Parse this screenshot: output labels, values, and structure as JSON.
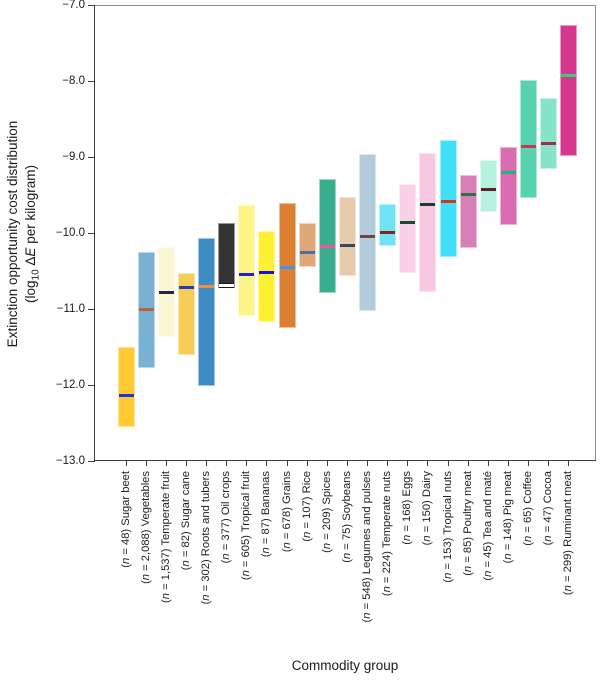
{
  "chart_data": {
    "type": "bar",
    "variant": "floating range bars (distribution min–max) with median tick per category",
    "title": "",
    "xlabel": "Commodity group",
    "ylabel_line1": "Extinction opportunity cost distribution",
    "ylabel_line2_parts": {
      "pre": "(log",
      "sub": "10",
      "mid": " Δ",
      "italic": "E",
      "post": " per kilogram)"
    },
    "ylabel_plain": "Extinction opportunity cost distribution (log10 ΔE per kilogram)",
    "ylim": [
      -13.0,
      -7.0
    ],
    "yticks": [
      -7.0,
      -8.0,
      -9.0,
      -10.0,
      -11.0,
      -12.0,
      -13.0
    ],
    "grid": false,
    "legend": "none",
    "bars": [
      {
        "name": "Sugar beet",
        "n": "48",
        "low": -12.55,
        "high": -11.5,
        "median": -12.14,
        "color": "#FECB34",
        "median_color": "#1733EE"
      },
      {
        "name": "Vegetables",
        "n": "2,088",
        "low": -11.77,
        "high": -10.25,
        "median": -11.0,
        "color": "#79B1D3",
        "median_color": "#BC6337"
      },
      {
        "name": "Temperate fruit",
        "n": "1,537",
        "low": -11.37,
        "high": -10.18,
        "median": -10.78,
        "color": "#FAF6D2",
        "median_color": "#1E2650"
      },
      {
        "name": "Sugar cane",
        "n": "82",
        "low": -11.61,
        "high": -10.52,
        "median": -10.72,
        "color": "#F6CD57",
        "median_color": "#2638BC"
      },
      {
        "name": "Roots and tubers",
        "n": "302",
        "low": -12.01,
        "high": -10.07,
        "median": -10.71,
        "color": "#3E8CC3",
        "median_color": "#F08A44"
      },
      {
        "name": "Oil crops",
        "n": "377",
        "low": -10.72,
        "high": -9.87,
        "median": -10.69,
        "color": "#333333",
        "median_color": "#FFFFFF"
      },
      {
        "name": "Tropical fruit",
        "n": "605",
        "low": -11.09,
        "high": -9.63,
        "median": -10.54,
        "color": "#FDF489",
        "median_color": "#2222CC"
      },
      {
        "name": "Bananas",
        "n": "87",
        "low": -11.17,
        "high": -9.97,
        "median": -10.52,
        "color": "#FEF032",
        "median_color": "#1414D6"
      },
      {
        "name": "Grains",
        "n": "678",
        "low": -11.25,
        "high": -9.6,
        "median": -10.46,
        "color": "#DD7F33",
        "median_color": "#3F97E8"
      },
      {
        "name": "Rice",
        "n": "107",
        "low": -10.45,
        "high": -9.87,
        "median": -10.26,
        "color": "#E0A878",
        "median_color": "#4272AE"
      },
      {
        "name": "Spices",
        "n": "209",
        "low": -10.79,
        "high": -9.29,
        "median": -10.18,
        "color": "#38AE8C",
        "median_color": "#F0559E"
      },
      {
        "name": "Soybeans",
        "n": "75",
        "low": -10.57,
        "high": -9.52,
        "median": -10.17,
        "color": "#E5CBAB",
        "median_color": "#32495F"
      },
      {
        "name": "Legumes and pulses",
        "n": "548",
        "low": -11.02,
        "high": -8.96,
        "median": -10.04,
        "color": "#B2CCDB",
        "median_color": "#6E4A40"
      },
      {
        "name": "Temperate nuts",
        "n": "224",
        "low": -10.17,
        "high": -9.62,
        "median": -9.99,
        "color": "#70E3F6",
        "median_color": "#8B241A"
      },
      {
        "name": "Eggs",
        "n": "168",
        "low": -10.53,
        "high": -9.35,
        "median": -9.86,
        "color": "#FAD0E5",
        "median_color": "#1B4A33"
      },
      {
        "name": "Dairy",
        "n": "150",
        "low": -10.77,
        "high": -8.95,
        "median": -9.62,
        "color": "#F8C7E1",
        "median_color": "#173F2D"
      },
      {
        "name": "Tropical nuts",
        "n": "153",
        "low": -10.31,
        "high": -8.77,
        "median": -9.58,
        "color": "#41DFF9",
        "median_color": "#D93418"
      },
      {
        "name": "Poultry meat",
        "n": "85",
        "low": -10.2,
        "high": -9.24,
        "median": -9.49,
        "color": "#D97FB8",
        "median_color": "#2F7048"
      },
      {
        "name": "Tea and maté",
        "n": "45",
        "low": -9.73,
        "high": -9.04,
        "median": -9.43,
        "color": "#B7F0DE",
        "median_color": "#59242E"
      },
      {
        "name": "Pig meat",
        "n": "148",
        "low": -9.89,
        "high": -8.87,
        "median": -9.2,
        "color": "#DA6DB1",
        "median_color": "#22B573"
      },
      {
        "name": "Coffee",
        "n": "65",
        "low": -9.54,
        "high": -7.99,
        "median": -8.86,
        "color": "#58D1AE",
        "median_color": "#C23A5C"
      },
      {
        "name": "Cocoa",
        "n": "47",
        "low": -9.16,
        "high": -8.22,
        "median": -8.82,
        "color": "#87E4C8",
        "median_color": "#A03045"
      },
      {
        "name": "Ruminant meat",
        "n": "299",
        "low": -8.99,
        "high": -7.26,
        "median": -7.93,
        "color": "#D5368E",
        "median_color": "#3BC878"
      }
    ]
  }
}
